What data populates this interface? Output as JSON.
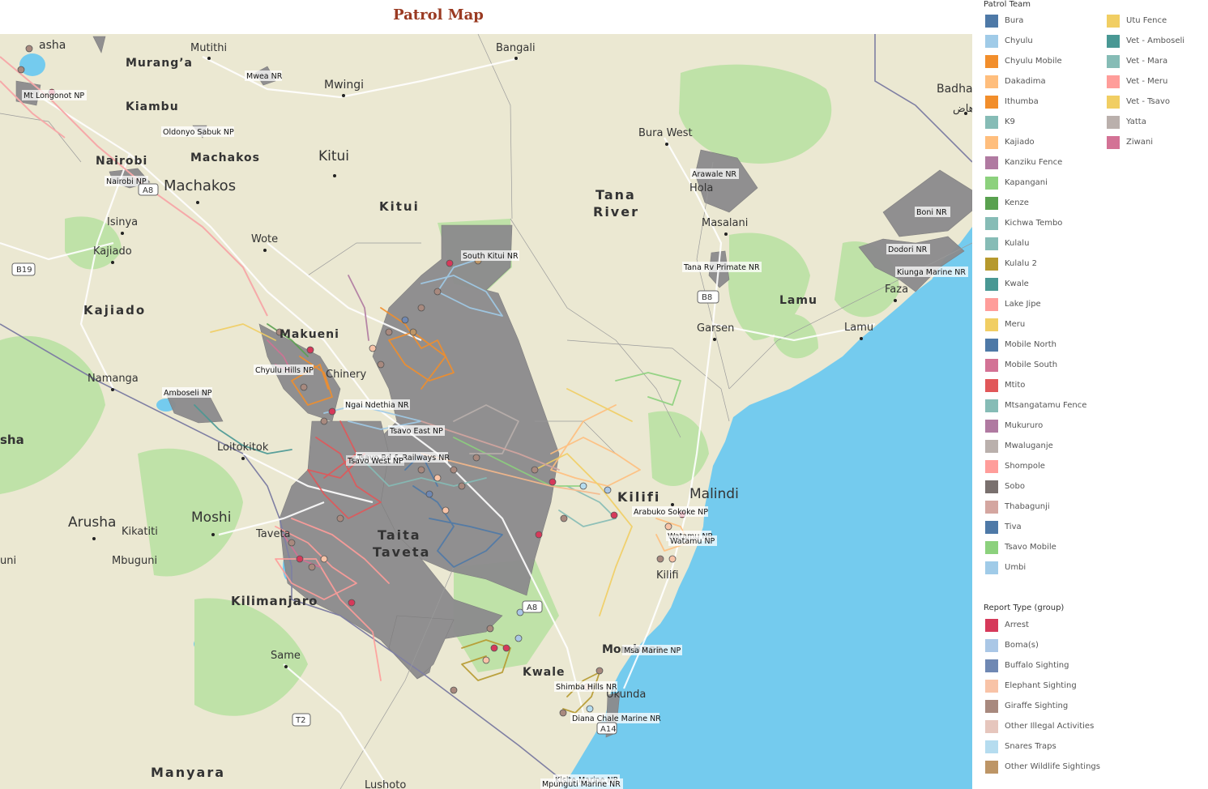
{
  "title": "Patrol Map",
  "colors": {
    "title": "#9a3a22",
    "water": "#74cbee",
    "land": "#ebe8d2",
    "protected": "#8c8b8d",
    "park": "#bfe2a8"
  },
  "legend": {
    "patrol_team_title": "Patrol Team",
    "patrol_teams": [
      {
        "label": "Bura",
        "color": "#4e79a7"
      },
      {
        "label": "Chyulu",
        "color": "#a0cbe8"
      },
      {
        "label": "Chyulu Mobile",
        "color": "#f28e2b"
      },
      {
        "label": "Dakadima",
        "color": "#ffbe7d"
      },
      {
        "label": "Ithumba",
        "color": "#f28e2b"
      },
      {
        "label": "K9",
        "color": "#86bcb6"
      },
      {
        "label": "Kajiado",
        "color": "#ffbe7d"
      },
      {
        "label": "Kanziku Fence",
        "color": "#b07aa1"
      },
      {
        "label": "Kapangani",
        "color": "#8cd17d"
      },
      {
        "label": "Kenze",
        "color": "#59a14f"
      },
      {
        "label": "Kichwa Tembo",
        "color": "#86bcb6"
      },
      {
        "label": "Kulalu",
        "color": "#86bcb6"
      },
      {
        "label": "Kulalu 2",
        "color": "#b6992d"
      },
      {
        "label": "Kwale",
        "color": "#499894"
      },
      {
        "label": "Lake Jipe",
        "color": "#ff9d9a"
      },
      {
        "label": "Meru",
        "color": "#f1ce63"
      },
      {
        "label": "Mobile North",
        "color": "#4e79a7"
      },
      {
        "label": "Mobile South",
        "color": "#d37295"
      },
      {
        "label": "Mtito",
        "color": "#e15759"
      },
      {
        "label": "Mtsangatamu Fence",
        "color": "#86bcb6"
      },
      {
        "label": "Mukururo",
        "color": "#b07aa1"
      },
      {
        "label": "Mwaluganje",
        "color": "#bab0ac"
      },
      {
        "label": "Shompole",
        "color": "#ff9d9a"
      },
      {
        "label": "Sobo",
        "color": "#79706e"
      },
      {
        "label": "Thabagunji",
        "color": "#d4a6a0"
      },
      {
        "label": "Tiva",
        "color": "#4e79a7"
      },
      {
        "label": "Tsavo Mobile",
        "color": "#8cd17d"
      },
      {
        "label": "Umbi",
        "color": "#a0cbe8"
      },
      {
        "label": "Utu Fence",
        "color": "#f1ce63"
      },
      {
        "label": "Vet - Amboseli",
        "color": "#499894"
      },
      {
        "label": "Vet - Mara",
        "color": "#86bcb6"
      },
      {
        "label": "Vet - Meru",
        "color": "#ff9d9a"
      },
      {
        "label": "Vet - Tsavo",
        "color": "#f1ce63"
      },
      {
        "label": "Yatta",
        "color": "#bab0ac"
      },
      {
        "label": "Ziwani",
        "color": "#d37295"
      }
    ],
    "report_type_title": "Report Type (group)",
    "report_types": [
      {
        "label": "Arrest",
        "color": "#d6395a"
      },
      {
        "label": "Boma(s)",
        "color": "#aac7e6"
      },
      {
        "label": "Buffalo Sighting",
        "color": "#6f88b3"
      },
      {
        "label": "Elephant Sighting",
        "color": "#f8c3a7"
      },
      {
        "label": "Giraffe Sighting",
        "color": "#a8897e"
      },
      {
        "label": "Other Illegal Activities",
        "color": "#e6c6bd"
      },
      {
        "label": "Snares Traps",
        "color": "#b5dcef"
      },
      {
        "label": "Other Wildlife Sightings",
        "color": "#bd9566"
      }
    ]
  },
  "map": {
    "places": [
      "asha",
      "Mutithi",
      "Murang’a",
      "Bangali",
      "Mwingi",
      "Kiambu",
      "Nairobi",
      "Machakos",
      "Machakos",
      "Kitui",
      "Kitui",
      "Bura West",
      "Isinya",
      "Wote",
      "Kajiado",
      "Kajiado",
      "Makueni",
      "Chinery",
      "Namanga",
      "Loitokitok",
      "sha",
      "Arusha",
      "Moshi",
      "Kikatiti",
      "Mbuguni",
      "uni",
      "Taveta",
      "Taita",
      "Taveta",
      "Kilimanjaro",
      "Same",
      "Manyara",
      "Lushoto",
      "Tana",
      "River",
      "Masalani",
      "Garsen",
      "Lamu",
      "Lamu",
      "Faza",
      "Badhaa",
      "هاض",
      "Malindi",
      "Kilifi",
      "Kilifi",
      "Kwale",
      "Mombasa",
      "Ukunda",
      "Hola"
    ],
    "areas": [
      "Mt Longonot NP",
      "Mwea NR",
      "Oldonyo Sabuk NP",
      "Nairobi NP",
      "South Kitui NR",
      "Chyulu Hills NP",
      "Amboseli NP",
      "Ngai Ndethia NR",
      "Tsavo East NP",
      "Tsavo Rd & Railways NR",
      "Tsavo West NP",
      "Arawale NR",
      "Tana Rv Primate NR",
      "Boni NR",
      "Dodori NR",
      "Kiunga Marine NR",
      "Arabuko Sokoke NP",
      "Watamu NR",
      "Watamu NP",
      "Msa Marine NP",
      "Shimba Hills NR",
      "Diana Chale Marine NR",
      "Kisite Marine NR",
      "Mpunguti Marine NR"
    ],
    "roads": [
      "B19",
      "A8",
      "B8",
      "A8",
      "T2",
      "A14"
    ]
  }
}
